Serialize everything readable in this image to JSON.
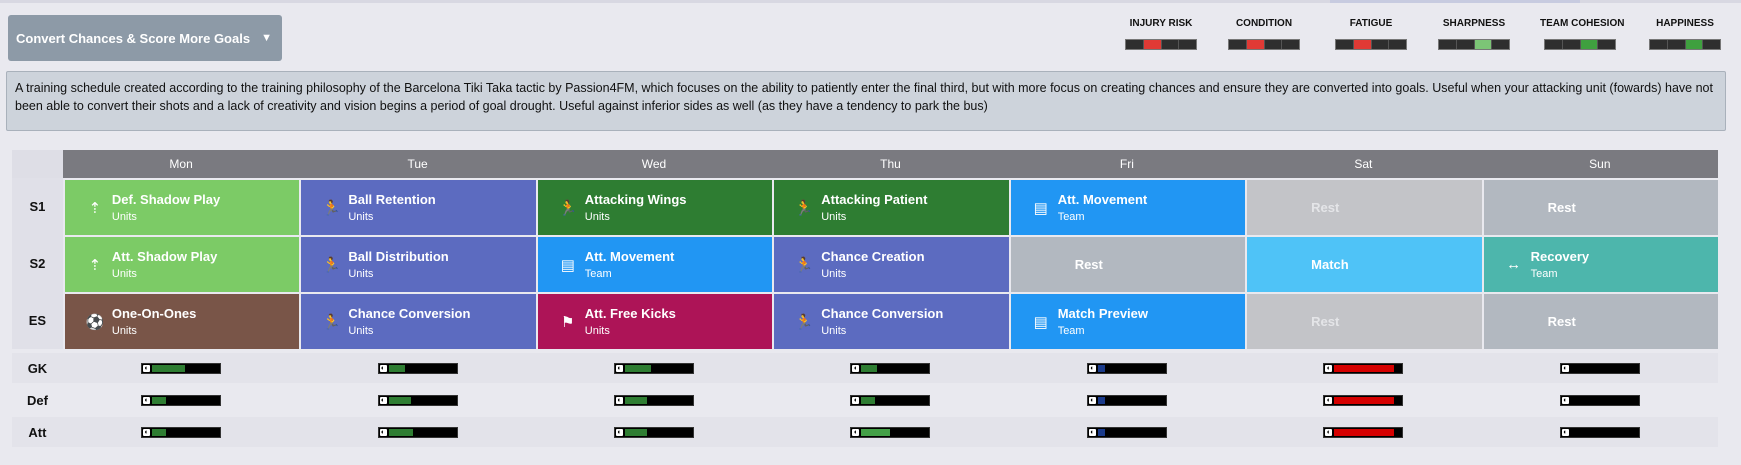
{
  "schedule": {
    "title": "Convert Chances & Score More Goals"
  },
  "meters": [
    {
      "label": "INJURY RISK",
      "segments": [
        "#2e2e2e",
        "#e03a35",
        "#2e2e2e",
        "#2e2e2e"
      ]
    },
    {
      "label": "CONDITION",
      "segments": [
        "#2e2e2e",
        "#e03a35",
        "#2e2e2e",
        "#2e2e2e"
      ]
    },
    {
      "label": "FATIGUE",
      "segments": [
        "#2e2e2e",
        "#e03a35",
        "#2e2e2e",
        "#2e2e2e"
      ]
    },
    {
      "label": "SHARPNESS",
      "segments": [
        "#2e2e2e",
        "#2e2e2e",
        "#7cc576",
        "#2e2e2e"
      ]
    },
    {
      "label": "TEAM COHESION",
      "segments": [
        "#2e2e2e",
        "#2e2e2e",
        "#3fa03f",
        "#2e2e2e"
      ]
    },
    {
      "label": "HAPPINESS",
      "segments": [
        "#2e2e2e",
        "#2e2e2e",
        "#3fa03f",
        "#2e2e2e"
      ]
    }
  ],
  "description": "A training schedule created according to the training philosophy of the Barcelona Tiki Taka tactic by Passion4FM, which focuses on the ability to patiently enter the final third, but with more focus on creating chances and ensure they are converted into goals. Useful when your attacking unit (fowards) have not been able to convert their shots and a lack of creativity and vision begins a period of goal drought. Useful against inferior sides as well (as they have a tendency to park the bus)",
  "days": [
    "Mon",
    "Tue",
    "Wed",
    "Thu",
    "Fri",
    "Sat",
    "Sun"
  ],
  "rows": [
    {
      "label": "S1",
      "cells": [
        {
          "name": "Def. Shadow Play",
          "type": "Units",
          "color": "#7ccb66",
          "icon": "shadow-play-icon",
          "glyph": "⇡"
        },
        {
          "name": "Ball Retention",
          "type": "Units",
          "color": "#5c6bc0",
          "icon": "runner-icon",
          "glyph": "🏃"
        },
        {
          "name": "Attacking Wings",
          "type": "Units",
          "color": "#2e7d32",
          "icon": "runner-icon",
          "glyph": "🏃"
        },
        {
          "name": "Attacking Patient",
          "type": "Units",
          "color": "#2e7d32",
          "icon": "runner-icon",
          "glyph": "🏃"
        },
        {
          "name": "Att. Movement",
          "type": "Team",
          "color": "#2196f3",
          "icon": "clipboard-icon",
          "glyph": "▤"
        },
        {
          "name": "Rest",
          "type": "",
          "color": "#c3c4c8",
          "textColor": "#e4e5e8",
          "plain": true
        },
        {
          "name": "Rest",
          "type": "",
          "color": "#b2b8c0",
          "textColor": "#ffffff",
          "plain": true
        }
      ]
    },
    {
      "label": "S2",
      "cells": [
        {
          "name": "Att. Shadow Play",
          "type": "Units",
          "color": "#7ccb66",
          "icon": "shadow-play-icon",
          "glyph": "⇡"
        },
        {
          "name": "Ball Distribution",
          "type": "Units",
          "color": "#5c6bc0",
          "icon": "runner-icon",
          "glyph": "🏃"
        },
        {
          "name": "Att. Movement",
          "type": "Team",
          "color": "#2196f3",
          "icon": "clipboard-icon",
          "glyph": "▤"
        },
        {
          "name": "Chance Creation",
          "type": "Units",
          "color": "#5c6bc0",
          "icon": "runner-icon",
          "glyph": "🏃"
        },
        {
          "name": "Rest",
          "type": "",
          "color": "#b2b8c0",
          "textColor": "#ffffff",
          "plain": true
        },
        {
          "name": "Match",
          "type": "",
          "color": "#4fc3f7",
          "textColor": "#ffffff",
          "plain": true
        },
        {
          "name": "Recovery",
          "type": "Team",
          "color": "#4db6ac",
          "icon": "recovery-icon",
          "glyph": "↔"
        }
      ]
    },
    {
      "label": "ES",
      "cells": [
        {
          "name": "One-On-Ones",
          "type": "Units",
          "color": "#795548",
          "icon": "shooting-icon",
          "glyph": "⚽"
        },
        {
          "name": "Chance Conversion",
          "type": "Units",
          "color": "#5c6bc0",
          "icon": "runner-icon",
          "glyph": "🏃"
        },
        {
          "name": "Att. Free Kicks",
          "type": "Units",
          "color": "#ad1457",
          "icon": "flag-icon",
          "glyph": "⚑"
        },
        {
          "name": "Chance Conversion",
          "type": "Units",
          "color": "#5c6bc0",
          "icon": "runner-icon",
          "glyph": "🏃"
        },
        {
          "name": "Match Preview",
          "type": "Team",
          "color": "#2196f3",
          "icon": "clipboard-icon",
          "glyph": "▤"
        },
        {
          "name": "Rest",
          "type": "",
          "color": "#c3c4c8",
          "textColor": "#e4e5e8",
          "plain": true
        },
        {
          "name": "Rest",
          "type": "",
          "color": "#b2b8c0",
          "textColor": "#ffffff",
          "plain": true
        }
      ]
    }
  ],
  "positions": [
    {
      "label": "GK",
      "levels": [
        {
          "value": 0.48,
          "color": "#2e7d32"
        },
        {
          "value": 0.24,
          "color": "#2e7d32"
        },
        {
          "value": 0.38,
          "color": "#2e7d32"
        },
        {
          "value": 0.24,
          "color": "#2e7d32"
        },
        {
          "value": 0.1,
          "color": "#1a3a8a"
        },
        {
          "value": 0.88,
          "color": "#d50000"
        },
        {
          "value": 0.0,
          "color": "#000000"
        }
      ]
    },
    {
      "label": "Def",
      "levels": [
        {
          "value": 0.2,
          "color": "#2e7d32"
        },
        {
          "value": 0.32,
          "color": "#2e7d32"
        },
        {
          "value": 0.32,
          "color": "#2e7d32"
        },
        {
          "value": 0.2,
          "color": "#2e7d32"
        },
        {
          "value": 0.1,
          "color": "#1a3a8a"
        },
        {
          "value": 0.88,
          "color": "#d50000"
        },
        {
          "value": 0.0,
          "color": "#000000"
        }
      ]
    },
    {
      "label": "Att",
      "levels": [
        {
          "value": 0.2,
          "color": "#2e7d32"
        },
        {
          "value": 0.36,
          "color": "#2e7d32"
        },
        {
          "value": 0.32,
          "color": "#2e7d32"
        },
        {
          "value": 0.42,
          "color": "#43a047"
        },
        {
          "value": 0.1,
          "color": "#1a3a8a"
        },
        {
          "value": 0.88,
          "color": "#d50000"
        },
        {
          "value": 0.0,
          "color": "#000000"
        }
      ]
    }
  ]
}
